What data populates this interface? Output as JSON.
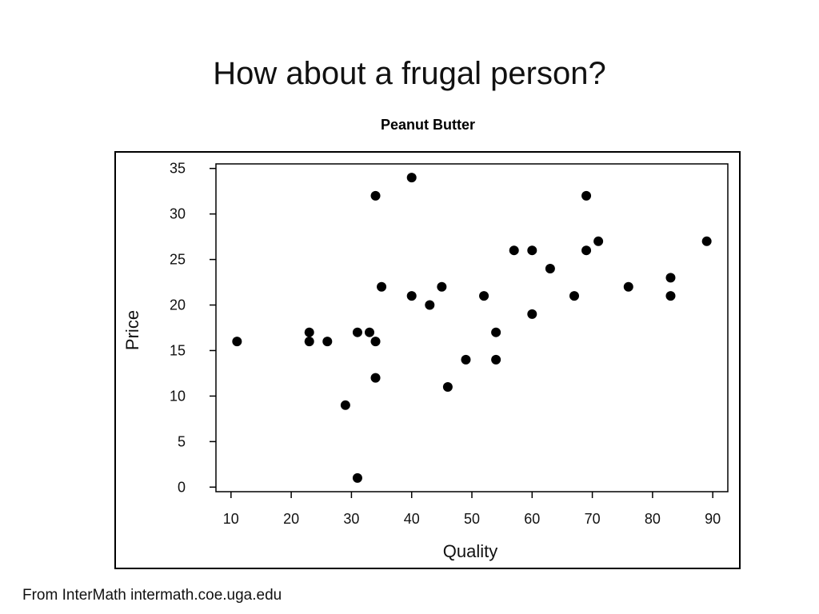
{
  "slide": {
    "title": "How about a frugal person?",
    "footer": "From InterMath intermath.coe.uga.edu"
  },
  "chart_data": {
    "type": "scatter",
    "title": "Peanut Butter",
    "xlabel": "Quality",
    "ylabel": "Price",
    "xlim": [
      7.5,
      92.5
    ],
    "ylim": [
      -0.5,
      35.5
    ],
    "xticks": [
      10,
      20,
      30,
      40,
      50,
      60,
      70,
      80,
      90
    ],
    "yticks": [
      0,
      5,
      10,
      15,
      20,
      25,
      30,
      35
    ],
    "grid": false,
    "point_color": "#000000",
    "series": [
      {
        "points": [
          [
            11,
            16
          ],
          [
            23,
            17
          ],
          [
            23,
            16
          ],
          [
            26,
            16
          ],
          [
            29,
            9
          ],
          [
            31,
            17
          ],
          [
            31,
            1
          ],
          [
            33,
            17
          ],
          [
            34,
            32
          ],
          [
            34,
            16
          ],
          [
            34,
            12
          ],
          [
            35,
            22
          ],
          [
            40,
            34
          ],
          [
            40,
            21
          ],
          [
            43,
            20
          ],
          [
            45,
            22
          ],
          [
            46,
            11
          ],
          [
            49,
            14
          ],
          [
            52,
            21
          ],
          [
            54,
            17
          ],
          [
            54,
            14
          ],
          [
            57,
            26
          ],
          [
            60,
            26
          ],
          [
            60,
            19
          ],
          [
            63,
            24
          ],
          [
            67,
            21
          ],
          [
            69,
            32
          ],
          [
            69,
            26
          ],
          [
            71,
            27
          ],
          [
            76,
            22
          ],
          [
            83,
            23
          ],
          [
            83,
            21
          ],
          [
            89,
            27
          ]
        ]
      }
    ]
  }
}
